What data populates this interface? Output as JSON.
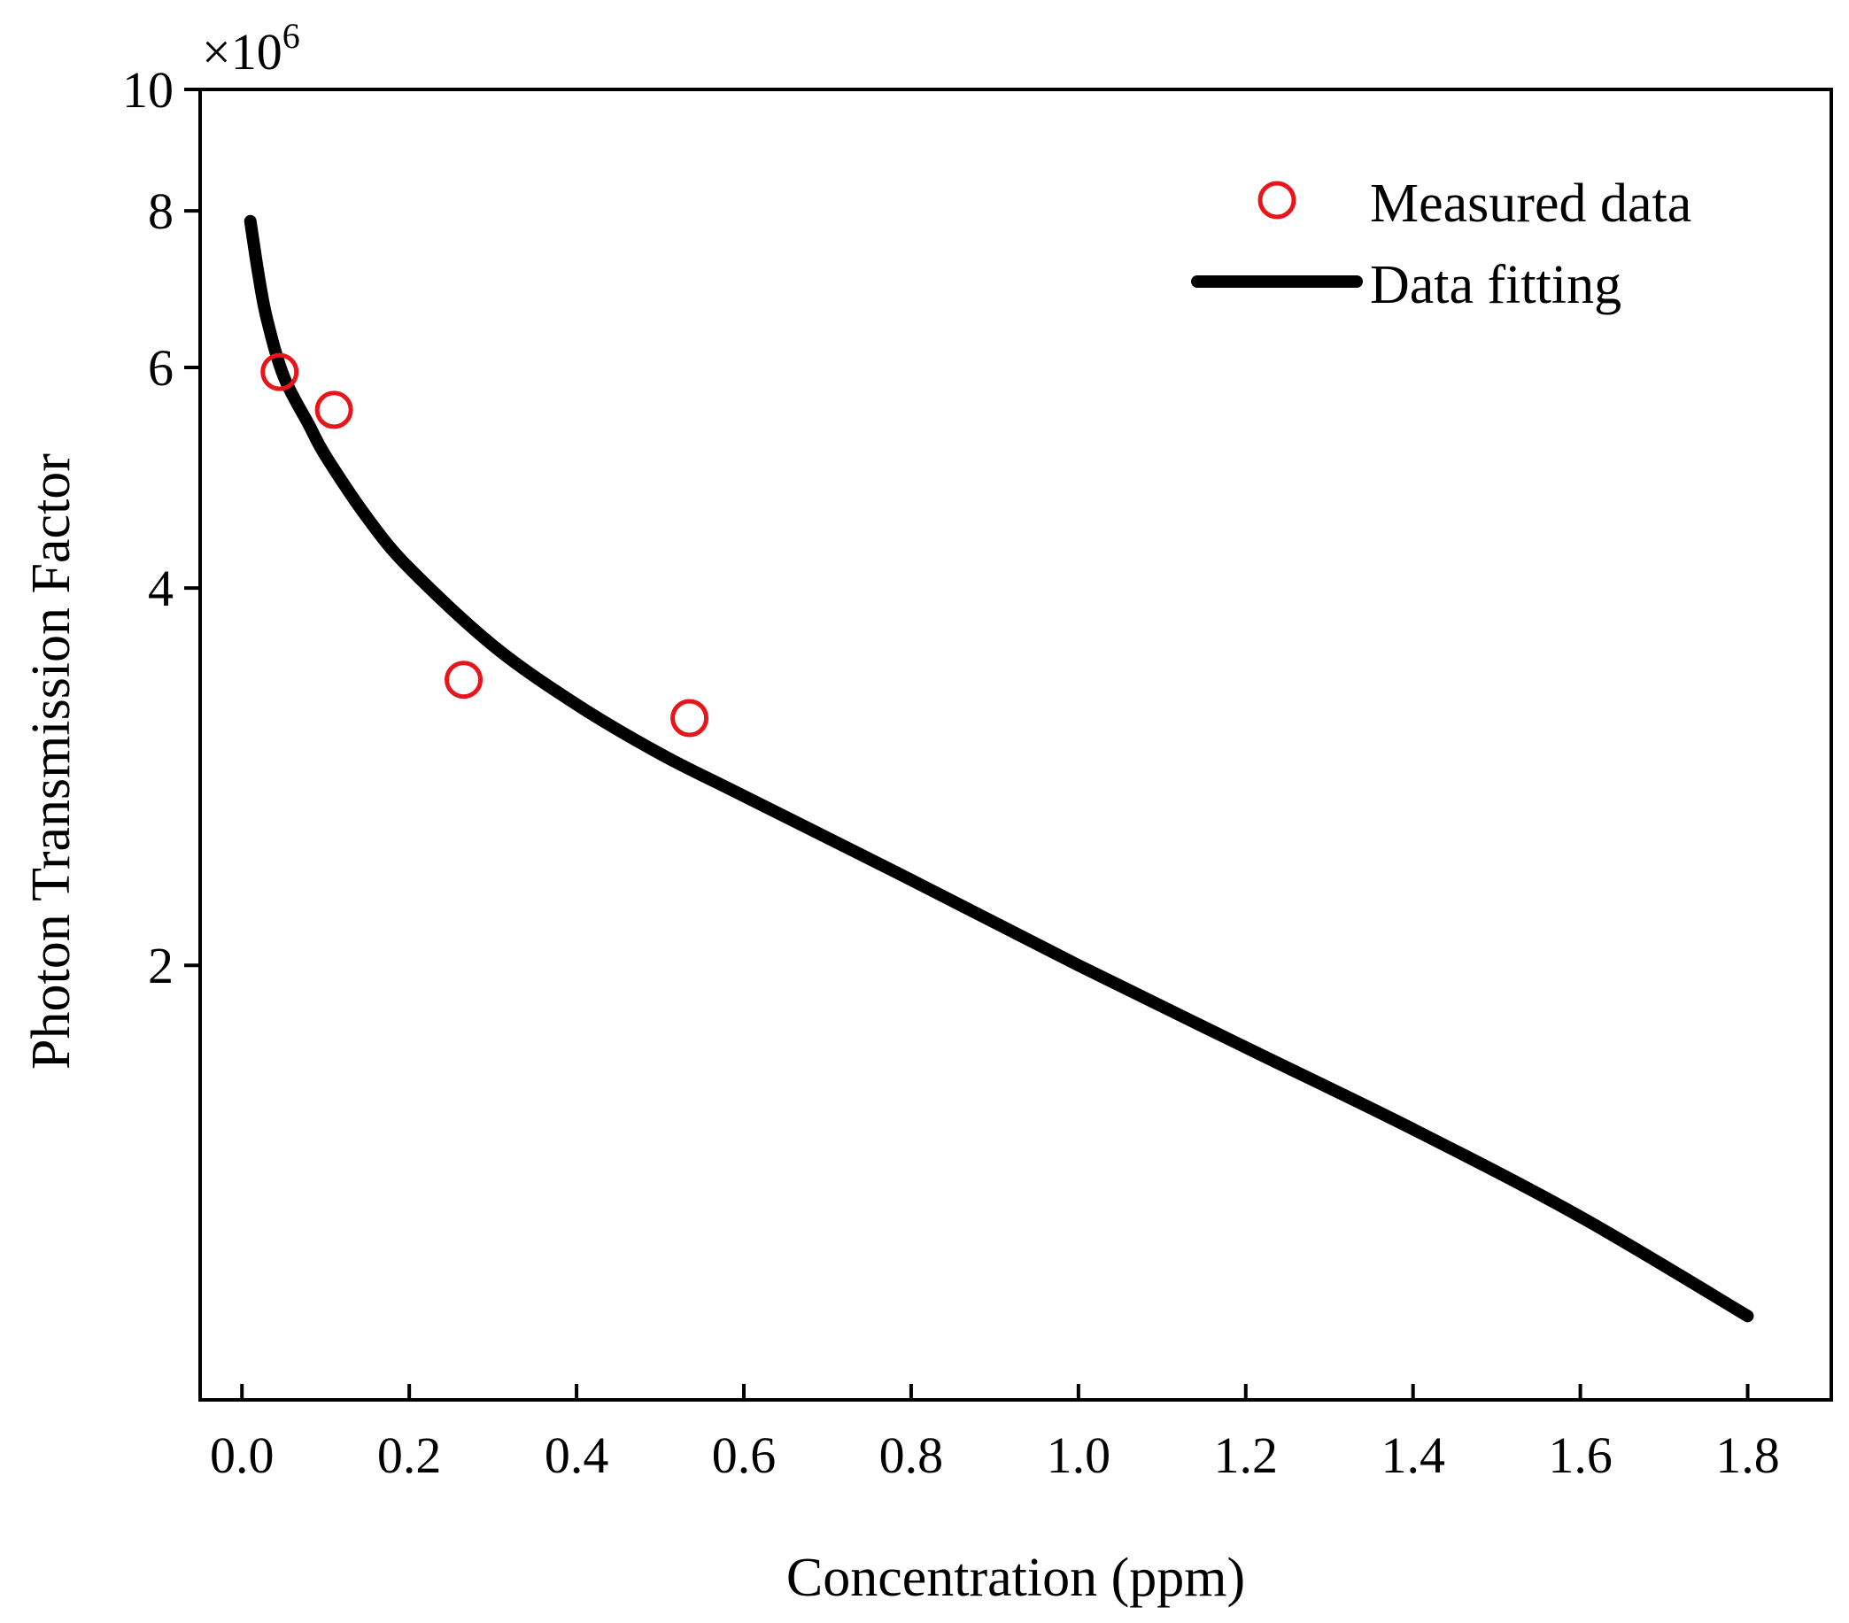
{
  "chart_data": {
    "type": "scatter",
    "title": "",
    "xlabel": "Concentration (ppm)",
    "ylabel": "Photon Transmission Factor",
    "y_scale": "log",
    "y_multiplier": {
      "base": "×10",
      "exponent": "6"
    },
    "xlim": [
      -0.05,
      1.9
    ],
    "ylim": [
      0.9,
      10
    ],
    "x_ticks": [
      {
        "value": 0.0,
        "label": "0.0"
      },
      {
        "value": 0.2,
        "label": "0.2"
      },
      {
        "value": 0.4,
        "label": "0.4"
      },
      {
        "value": 0.6,
        "label": "0.6"
      },
      {
        "value": 0.8,
        "label": "0.8"
      },
      {
        "value": 1.0,
        "label": "1.0"
      },
      {
        "value": 1.2,
        "label": "1.2"
      },
      {
        "value": 1.4,
        "label": "1.4"
      },
      {
        "value": 1.6,
        "label": "1.6"
      },
      {
        "value": 1.8,
        "label": "1.8"
      }
    ],
    "y_ticks": [
      {
        "value": 2,
        "label": "2"
      },
      {
        "value": 4,
        "label": "4"
      },
      {
        "value": 6,
        "label": "6"
      },
      {
        "value": 8,
        "label": "8"
      },
      {
        "value": 10,
        "label": "10"
      }
    ],
    "legend_position": "top-right",
    "series": [
      {
        "name": "Measured data",
        "type": "scatter",
        "marker": "open-circle",
        "color": "#e8161b",
        "x": [
          0.045,
          0.11,
          0.265,
          0.535
        ],
        "y": [
          5.95,
          5.55,
          3.38,
          3.15
        ]
      },
      {
        "name": "Data fitting",
        "type": "line",
        "color": "#000000",
        "x": [
          0.01,
          0.02,
          0.03,
          0.05,
          0.08,
          0.1,
          0.15,
          0.2,
          0.3,
          0.4,
          0.5,
          0.6,
          0.8,
          1.0,
          1.2,
          1.4,
          1.6,
          1.8
        ],
        "y": [
          7.85,
          7.1,
          6.55,
          5.9,
          5.4,
          5.1,
          4.55,
          4.15,
          3.6,
          3.23,
          2.95,
          2.73,
          2.34,
          2.0,
          1.72,
          1.48,
          1.26,
          1.05
        ]
      }
    ]
  }
}
